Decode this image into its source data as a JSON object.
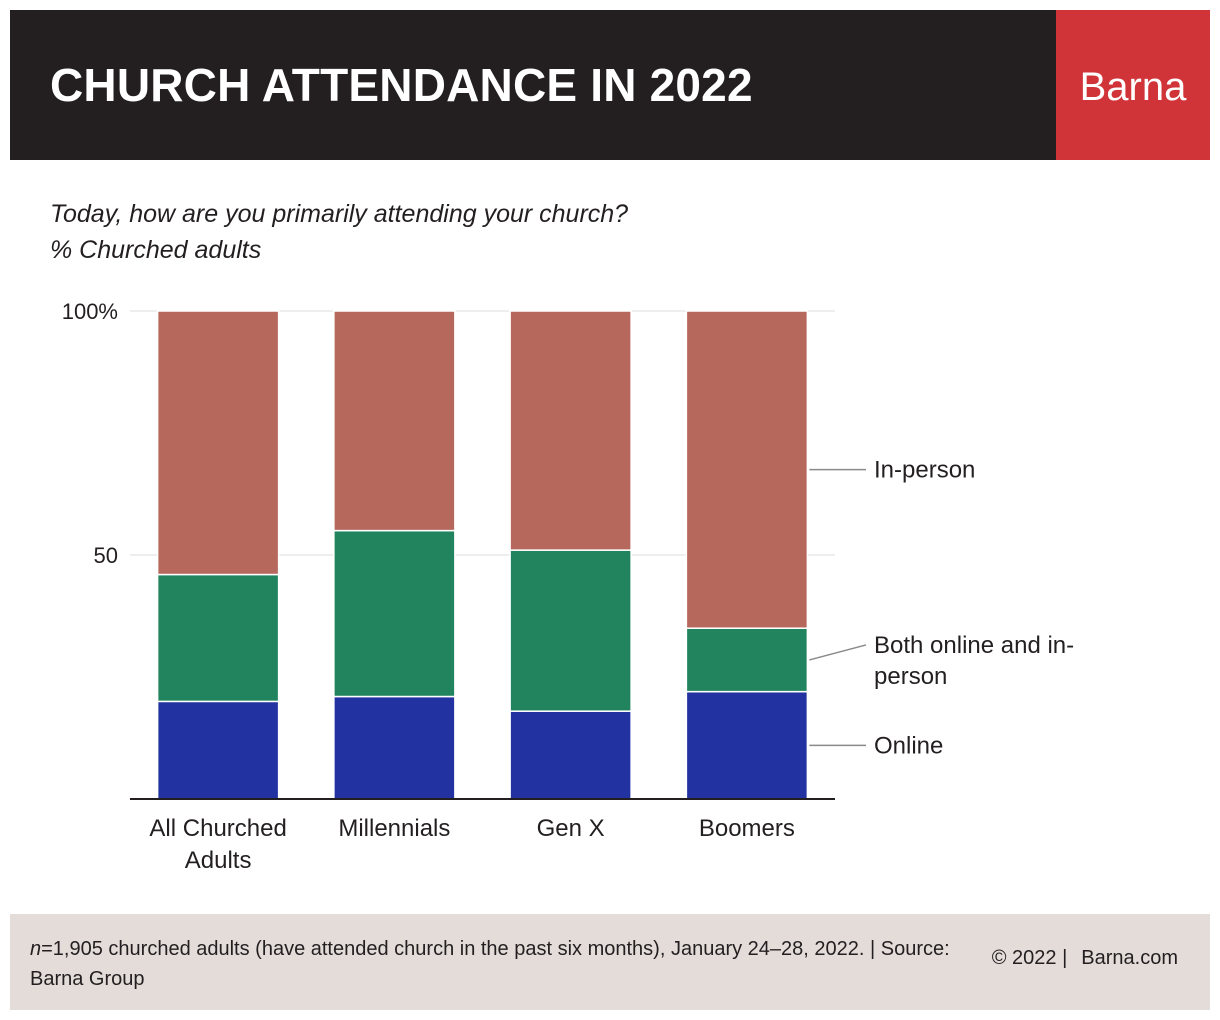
{
  "header": {
    "title": "CHURCH ATTENDANCE IN 2022",
    "brand": "Barna",
    "bg_color": "#231f20",
    "brand_color": "#d13438"
  },
  "question": {
    "line1": "Today, how are you primarily attending your church?",
    "line2": "% Churched adults"
  },
  "chart_data": {
    "type": "bar",
    "stacked": true,
    "categories": [
      "All Churched Adults",
      "Millennials",
      "Gen X",
      "Boomers"
    ],
    "category_lines": [
      [
        "All Churched",
        "Adults"
      ],
      [
        "Millennials"
      ],
      [
        "Gen X"
      ],
      [
        "Boomers"
      ]
    ],
    "series": [
      {
        "name": "Online",
        "color": "#2233a1",
        "values": [
          20,
          21,
          18,
          22
        ]
      },
      {
        "name": "Both online and in-person",
        "color": "#22845e",
        "values": [
          26,
          34,
          33,
          13
        ]
      },
      {
        "name": "In-person",
        "color": "#b6685d",
        "values": [
          54,
          45,
          49,
          65
        ]
      }
    ],
    "legend_lines": {
      "Online": [
        "Online"
      ],
      "Both online and in-person": [
        "Both online and in-",
        "person"
      ],
      "In-person": [
        "In-person"
      ]
    },
    "yticks": [
      {
        "value": 100,
        "label": "100%"
      },
      {
        "value": 50,
        "label": "50"
      }
    ],
    "ylim": [
      0,
      100
    ],
    "grid": true,
    "legend_placement": "right"
  },
  "footer": {
    "n_label": "n",
    "note": "=1,905 churched adults (have attended church in the past six months), January 24–28, 2022. | Source: Barna Group",
    "copyright": "© 2022 |",
    "site": "Barna.com",
    "bg_color": "#e3dcd9"
  }
}
